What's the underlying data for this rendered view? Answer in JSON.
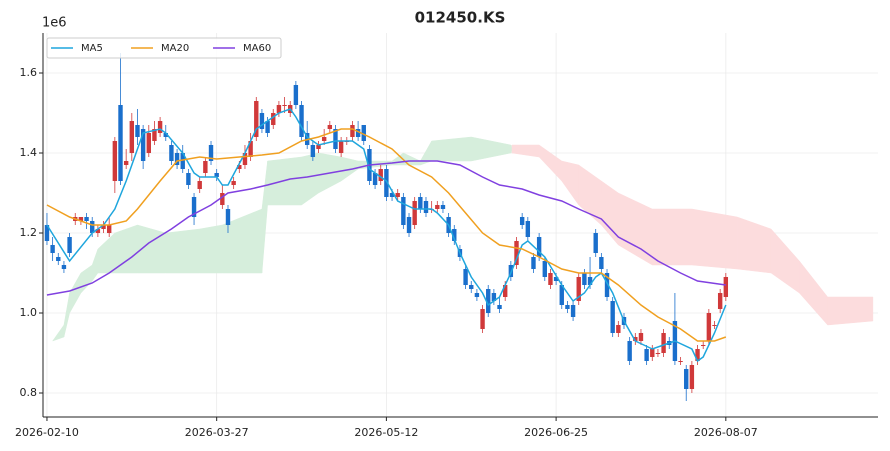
{
  "chart_data": {
    "type": "candlestick",
    "title": "012450.KS",
    "y_offset_label": "1e6",
    "up_color": "#d0393a",
    "down_color": "#1a6fcc",
    "candles": {
      "open": [
        1.22,
        1.17,
        1.14,
        1.12,
        1.19,
        1.23,
        1.23,
        1.24,
        1.23,
        1.2,
        1.21,
        1.2,
        1.33,
        1.52,
        1.37,
        1.4,
        1.47,
        1.46,
        1.4,
        1.43,
        1.45,
        1.45,
        1.42,
        1.4,
        1.4,
        1.35,
        1.29,
        1.31,
        1.35,
        1.42,
        1.35,
        1.27,
        1.26,
        1.32,
        1.36,
        1.37,
        1.39,
        1.44,
        1.5,
        1.48,
        1.47,
        1.5,
        1.52,
        1.5,
        1.57,
        1.52,
        1.45,
        1.42,
        1.41,
        1.43,
        1.46,
        1.46,
        1.4,
        1.43,
        1.44,
        1.46,
        1.47,
        1.41,
        1.35,
        1.33,
        1.36,
        1.3,
        1.29,
        1.29,
        1.24,
        1.22,
        1.29,
        1.28,
        1.26,
        1.26,
        1.27,
        1.24,
        1.21,
        1.16,
        1.11,
        1.07,
        1.05,
        0.96,
        1.06,
        1.05,
        1.02,
        1.04,
        1.12,
        1.12,
        1.24,
        1.23,
        1.14,
        1.19,
        1.13,
        1.07,
        1.09,
        1.07,
        1.02,
        1.02,
        1.03,
        1.1,
        1.09,
        1.2,
        1.14,
        1.1,
        1.03,
        0.95,
        0.99,
        0.93,
        0.93,
        0.93,
        0.91,
        0.89,
        0.9,
        0.9,
        0.93,
        0.98,
        0.88,
        0.86,
        0.81,
        0.88,
        0.92,
        0.93,
        0.97,
        1.01,
        1.04
      ],
      "high": [
        1.25,
        1.19,
        1.15,
        1.13,
        1.2,
        1.25,
        1.24,
        1.25,
        1.24,
        1.22,
        1.23,
        1.24,
        1.44,
        1.65,
        1.41,
        1.5,
        1.51,
        1.47,
        1.47,
        1.48,
        1.49,
        1.47,
        1.43,
        1.41,
        1.42,
        1.36,
        1.3,
        1.34,
        1.39,
        1.43,
        1.36,
        1.32,
        1.27,
        1.34,
        1.38,
        1.42,
        1.45,
        1.54,
        1.51,
        1.49,
        1.51,
        1.53,
        1.54,
        1.53,
        1.58,
        1.53,
        1.48,
        1.43,
        1.43,
        1.46,
        1.48,
        1.47,
        1.44,
        1.44,
        1.48,
        1.48,
        1.47,
        1.42,
        1.36,
        1.37,
        1.37,
        1.31,
        1.31,
        1.3,
        1.25,
        1.29,
        1.3,
        1.29,
        1.28,
        1.28,
        1.28,
        1.25,
        1.22,
        1.17,
        1.12,
        1.08,
        1.06,
        1.02,
        1.07,
        1.06,
        1.04,
        1.08,
        1.13,
        1.19,
        1.25,
        1.24,
        1.15,
        1.2,
        1.14,
        1.11,
        1.1,
        1.08,
        1.03,
        1.03,
        1.1,
        1.11,
        1.14,
        1.21,
        1.15,
        1.11,
        1.04,
        0.98,
        1.0,
        0.94,
        0.95,
        0.96,
        0.92,
        0.92,
        0.91,
        0.96,
        0.94,
        1.05,
        0.89,
        0.87,
        0.88,
        0.92,
        0.93,
        1.01,
        0.98,
        1.06,
        1.1
      ],
      "low": [
        1.17,
        1.13,
        1.12,
        1.1,
        1.14,
        1.22,
        1.22,
        1.21,
        1.19,
        1.19,
        1.2,
        1.19,
        1.3,
        1.32,
        1.36,
        1.38,
        1.42,
        1.36,
        1.39,
        1.42,
        1.44,
        1.43,
        1.37,
        1.36,
        1.35,
        1.31,
        1.22,
        1.3,
        1.34,
        1.37,
        1.33,
        1.26,
        1.2,
        1.31,
        1.35,
        1.36,
        1.38,
        1.43,
        1.45,
        1.44,
        1.46,
        1.49,
        1.5,
        1.49,
        1.51,
        1.43,
        1.41,
        1.38,
        1.4,
        1.42,
        1.45,
        1.4,
        1.39,
        1.42,
        1.43,
        1.43,
        1.42,
        1.32,
        1.31,
        1.32,
        1.28,
        1.28,
        1.28,
        1.21,
        1.19,
        1.21,
        1.25,
        1.24,
        1.25,
        1.25,
        1.25,
        1.19,
        1.17,
        1.13,
        1.06,
        1.05,
        1.03,
        0.95,
        0.99,
        1.02,
        1.0,
        1.03,
        1.08,
        1.11,
        1.21,
        1.18,
        1.1,
        1.13,
        1.08,
        1.06,
        1.07,
        1.01,
        1.0,
        0.98,
        1.02,
        1.06,
        1.06,
        1.14,
        1.1,
        1.03,
        0.94,
        0.94,
        0.96,
        0.87,
        0.92,
        0.92,
        0.87,
        0.88,
        0.89,
        0.89,
        0.91,
        0.87,
        0.87,
        0.78,
        0.8,
        0.87,
        0.91,
        0.92,
        0.96,
        1.0,
        1.03
      ],
      "close": [
        1.18,
        1.15,
        1.13,
        1.11,
        1.15,
        1.24,
        1.24,
        1.23,
        1.2,
        1.21,
        1.22,
        1.22,
        1.43,
        1.33,
        1.38,
        1.48,
        1.44,
        1.38,
        1.45,
        1.46,
        1.48,
        1.44,
        1.38,
        1.37,
        1.36,
        1.32,
        1.24,
        1.33,
        1.38,
        1.38,
        1.34,
        1.3,
        1.22,
        1.33,
        1.37,
        1.4,
        1.43,
        1.53,
        1.46,
        1.45,
        1.5,
        1.52,
        1.52,
        1.52,
        1.52,
        1.44,
        1.42,
        1.39,
        1.42,
        1.44,
        1.47,
        1.41,
        1.43,
        1.43,
        1.47,
        1.44,
        1.43,
        1.33,
        1.32,
        1.36,
        1.29,
        1.29,
        1.3,
        1.22,
        1.2,
        1.28,
        1.26,
        1.25,
        1.26,
        1.27,
        1.26,
        1.2,
        1.18,
        1.14,
        1.07,
        1.06,
        1.04,
        1.01,
        1.0,
        1.03,
        1.01,
        1.07,
        1.09,
        1.18,
        1.22,
        1.19,
        1.11,
        1.14,
        1.09,
        1.1,
        1.08,
        1.02,
        1.01,
        0.99,
        1.09,
        1.07,
        1.07,
        1.15,
        1.11,
        1.04,
        0.95,
        0.97,
        0.97,
        0.88,
        0.94,
        0.95,
        0.88,
        0.91,
        0.9,
        0.95,
        0.92,
        0.88,
        0.88,
        0.81,
        0.87,
        0.91,
        0.92,
        1.0,
        0.97,
        1.05,
        1.09
      ]
    },
    "series": [
      {
        "name": "MA5",
        "color": "#1fa6dd",
        "x": [
          0,
          4,
          8,
          10,
          12,
          14,
          16,
          17,
          20,
          21,
          24,
          26,
          27,
          30,
          31,
          32,
          35,
          37,
          39,
          41,
          43,
          44,
          46,
          48,
          51,
          54,
          56,
          57,
          60,
          62,
          65,
          68,
          69,
          71,
          73,
          75,
          77,
          78,
          80,
          82,
          84,
          85,
          88,
          91,
          93,
          95,
          97,
          98,
          100,
          102,
          104,
          107,
          109,
          111,
          114,
          115,
          116,
          118,
          120
        ],
        "values": [
          1.22,
          1.13,
          1.2,
          1.22,
          1.26,
          1.33,
          1.41,
          1.45,
          1.46,
          1.45,
          1.4,
          1.35,
          1.34,
          1.34,
          1.32,
          1.32,
          1.4,
          1.46,
          1.48,
          1.5,
          1.51,
          1.49,
          1.44,
          1.42,
          1.43,
          1.43,
          1.41,
          1.36,
          1.33,
          1.28,
          1.26,
          1.26,
          1.25,
          1.22,
          1.15,
          1.09,
          1.05,
          1.02,
          1.04,
          1.1,
          1.17,
          1.18,
          1.14,
          1.07,
          1.03,
          1.05,
          1.09,
          1.1,
          1.05,
          0.98,
          0.93,
          0.91,
          0.92,
          0.93,
          0.91,
          0.88,
          0.89,
          0.95,
          1.02
        ]
      },
      {
        "name": "MA20",
        "color": "#f0a020",
        "x": [
          0,
          4,
          8,
          11,
          14,
          16,
          20,
          23,
          27,
          30,
          34,
          38,
          41,
          45,
          48,
          52,
          54,
          57,
          61,
          64,
          68,
          71,
          74,
          77,
          80,
          84,
          87,
          91,
          94,
          98,
          101,
          105,
          108,
          112,
          115,
          118,
          120
        ],
        "values": [
          1.27,
          1.24,
          1.22,
          1.22,
          1.23,
          1.26,
          1.33,
          1.38,
          1.39,
          1.385,
          1.39,
          1.395,
          1.4,
          1.43,
          1.44,
          1.46,
          1.46,
          1.44,
          1.41,
          1.37,
          1.34,
          1.3,
          1.25,
          1.2,
          1.17,
          1.16,
          1.14,
          1.11,
          1.1,
          1.1,
          1.07,
          1.02,
          0.99,
          0.96,
          0.93,
          0.93,
          0.94
        ]
      },
      {
        "name": "MA60",
        "color": "#8040e0",
        "x": [
          0,
          4,
          8,
          11,
          15,
          18,
          22,
          25,
          29,
          32,
          36,
          39,
          43,
          46,
          50,
          54,
          57,
          61,
          64,
          69,
          73,
          77,
          80,
          84,
          87,
          91,
          94,
          98,
          101,
          105,
          108,
          112,
          115,
          120
        ],
        "values": [
          1.045,
          1.055,
          1.075,
          1.1,
          1.14,
          1.175,
          1.21,
          1.24,
          1.27,
          1.3,
          1.31,
          1.32,
          1.335,
          1.34,
          1.35,
          1.36,
          1.37,
          1.375,
          1.38,
          1.38,
          1.37,
          1.34,
          1.32,
          1.31,
          1.295,
          1.28,
          1.26,
          1.235,
          1.19,
          1.16,
          1.13,
          1.1,
          1.08,
          1.07
        ]
      }
    ],
    "cloud": {
      "up_color": "#d6eedc",
      "down_color": "#fcdcdd",
      "x": [
        1,
        3,
        4,
        6,
        8,
        9,
        12,
        16,
        21,
        27,
        31,
        38,
        39,
        45,
        48,
        52,
        55,
        61,
        63,
        66,
        68,
        75,
        82,
        82.2,
        87,
        91,
        94,
        98,
        101,
        107,
        114,
        122,
        128,
        133,
        138,
        146
      ],
      "span_a": [
        0.93,
        0.97,
        1.05,
        1.1,
        1.12,
        1.16,
        1.2,
        1.22,
        1.2,
        1.21,
        1.22,
        1.26,
        1.38,
        1.39,
        1.4,
        1.39,
        1.38,
        1.38,
        1.4,
        1.38,
        1.43,
        1.44,
        1.42,
        1.4,
        1.39,
        1.33,
        1.27,
        1.22,
        1.17,
        1.12,
        1.12,
        1.11,
        1.1,
        1.05,
        0.97,
        0.98
      ],
      "span_b": [
        0.93,
        0.94,
        1.0,
        1.05,
        1.08,
        1.1,
        1.1,
        1.1,
        1.1,
        1.1,
        1.1,
        1.1,
        1.27,
        1.27,
        1.3,
        1.33,
        1.36,
        1.37,
        1.37,
        1.37,
        1.38,
        1.38,
        1.4,
        1.42,
        1.42,
        1.38,
        1.37,
        1.33,
        1.3,
        1.26,
        1.26,
        1.24,
        1.21,
        1.13,
        1.04,
        1.04
      ]
    },
    "xlim": [
      -0.7,
      146.9
    ],
    "ylim": [
      0.74,
      1.7
    ],
    "xticks": [
      {
        "value": 0,
        "label": "2026-02-10"
      },
      {
        "value": 30,
        "label": "2026-03-27"
      },
      {
        "value": 60,
        "label": "2026-05-12"
      },
      {
        "value": 90,
        "label": "2026-06-25"
      },
      {
        "value": 120,
        "label": "2026-08-07"
      }
    ],
    "yticks": [
      0.8,
      {
        "value": 1.0,
        "label": "1.0"
      },
      1.2,
      1.4,
      1.6
    ],
    "grid": true,
    "legend": "upper left"
  }
}
